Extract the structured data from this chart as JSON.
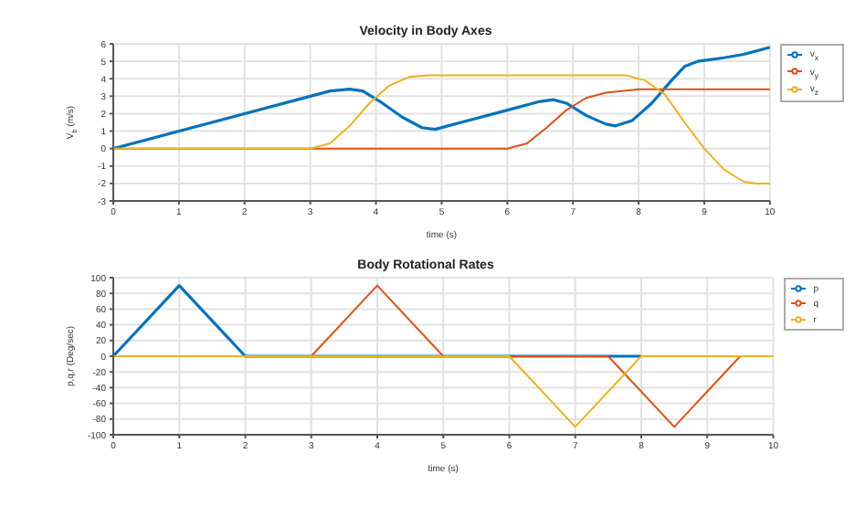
{
  "chart_data": [
    {
      "type": "line",
      "title": "Velocity in Body Axes",
      "xlabel": "time (s)",
      "ylabel": "V$_{b}$ (m/s)",
      "xlim": [
        0,
        10
      ],
      "xticks": [
        0,
        1,
        2,
        3,
        4,
        5,
        6,
        7,
        8,
        9,
        10
      ],
      "ylim": [
        -3,
        6
      ],
      "yticks": [
        -3,
        -2,
        -1,
        0,
        1,
        2,
        3,
        4,
        5,
        6
      ],
      "grid": true,
      "legend": "top right",
      "series": [
        {
          "name": "v$_{x}$",
          "color": "#0072bd",
          "x": [
            0,
            3,
            3.3,
            3.6,
            3.8,
            4.1,
            4.4,
            4.7,
            4.9,
            6,
            6.5,
            6.7,
            6.9,
            7.2,
            7.5,
            7.65,
            7.9,
            8.2,
            8.5,
            8.7,
            8.9,
            9.3,
            9.6,
            10
          ],
          "values": [
            0,
            3,
            3.3,
            3.4,
            3.3,
            2.6,
            1.8,
            1.2,
            1.1,
            2.2,
            2.7,
            2.8,
            2.6,
            1.9,
            1.4,
            1.3,
            1.6,
            2.6,
            3.9,
            4.7,
            5,
            5.2,
            5.4,
            5.8
          ]
        },
        {
          "name": "v$_{y}$",
          "color": "#d95319",
          "x": [
            0,
            6,
            6.3,
            6.6,
            6.9,
            7.2,
            7.5,
            8,
            10
          ],
          "values": [
            0,
            0,
            0.3,
            1.2,
            2.2,
            2.9,
            3.2,
            3.4,
            3.4
          ]
        },
        {
          "name": "v$_{z}$",
          "color": "#edb120",
          "x": [
            0,
            3,
            3.3,
            3.6,
            3.9,
            4.2,
            4.5,
            4.8,
            7.8,
            8.1,
            8.4,
            8.7,
            9,
            9.3,
            9.6,
            9.8,
            10
          ],
          "values": [
            0,
            0,
            0.3,
            1.3,
            2.6,
            3.6,
            4.1,
            4.2,
            4.2,
            3.9,
            3.1,
            1.5,
            0,
            -1.2,
            -1.9,
            -2,
            -2
          ]
        }
      ]
    },
    {
      "type": "line",
      "title": "Body Rotational Rates",
      "xlabel": "time (s)",
      "ylabel": "p,q,r (Deg/sec)",
      "xlim": [
        0,
        10
      ],
      "xticks": [
        0,
        1,
        2,
        3,
        4,
        5,
        6,
        7,
        8,
        9,
        10
      ],
      "ylim": [
        -100,
        100
      ],
      "yticks": [
        -100,
        -80,
        -60,
        -40,
        -20,
        0,
        20,
        40,
        60,
        80,
        100
      ],
      "grid": true,
      "legend": "top right",
      "series": [
        {
          "name": "p",
          "color": "#0072bd",
          "x": [
            0,
            1,
            2,
            8
          ],
          "values": [
            0,
            90,
            0,
            0
          ]
        },
        {
          "name": "q",
          "color": "#d95319",
          "x": [
            0,
            3,
            4,
            5,
            7.5,
            8.5,
            9.5,
            10
          ],
          "values": [
            0,
            0,
            90,
            0,
            0,
            -90,
            0,
            0
          ]
        },
        {
          "name": "r",
          "color": "#edb120",
          "x": [
            0,
            6,
            7,
            8,
            10
          ],
          "values": [
            0,
            0,
            -90,
            0,
            0
          ]
        }
      ]
    }
  ]
}
